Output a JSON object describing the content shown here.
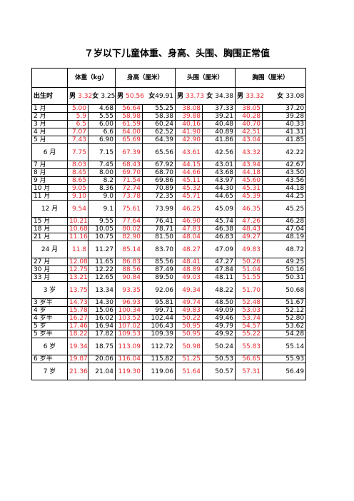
{
  "title": "７岁以下儿童体重、身高、头围、胸围正常值",
  "header": {
    "col_weight": "体重（kg）",
    "col_height": "身高（厘米）",
    "col_head": "头围（厘米）",
    "col_chest": "胸围（厘米）"
  },
  "subheader": {
    "age": "出生时",
    "weight": {
      "male_label": "男",
      "male_value": "3.32",
      "female_label": "女",
      "female_value": "3.25"
    },
    "height": {
      "male_label": "男",
      "male_value": "50.56",
      "female_label": "女",
      "female_value": "49.91"
    },
    "head": {
      "male_label": "男",
      "male_value": "33.73",
      "female_label": "女",
      "female_value": "34.38"
    },
    "chest": {
      "male_label": "男",
      "male_value": "33.32",
      "female_label": "女",
      "female_value": "33.08"
    }
  },
  "colors": {
    "male": "#e8262b",
    "female": "#000000"
  },
  "rows": [
    {
      "age": "1 月",
      "tall": false,
      "v": [
        "5.00",
        "4.68",
        "56.64",
        "55.25",
        "38.08",
        "37.33",
        "38.05",
        "37.20"
      ]
    },
    {
      "age": "2 月",
      "tall": false,
      "v": [
        "5.9",
        "5.55",
        "58.98",
        "58.38",
        "39.88",
        "39.21",
        "40.28",
        "39.28"
      ]
    },
    {
      "age": "3 月",
      "tall": false,
      "v": [
        "6.5",
        "6.00",
        "61.59",
        "60.24",
        "40.16",
        "40.48",
        "40.70",
        "40.33"
      ]
    },
    {
      "age": "4 月",
      "tall": false,
      "v": [
        "7.07",
        "6.6",
        "64.00",
        "62.52",
        "41.90",
        "40.89",
        "42.51",
        "41.31"
      ]
    },
    {
      "age": "5 月",
      "tall": false,
      "v": [
        "7.43",
        "6.90",
        "65.69",
        "64.39",
        "42.90",
        "41.86",
        "43.04",
        "41.85"
      ]
    },
    {
      "age": "6 月",
      "tall": true,
      "v": [
        "7.75",
        "7.15",
        "67.39",
        "65.56",
        "43.61",
        "42.56",
        "43.32",
        "42.22"
      ]
    },
    {
      "age": "7 月",
      "tall": false,
      "v": [
        "8.03",
        "7.45",
        "68.43",
        "67.92",
        "44.15",
        "43.01",
        "43.94",
        "42.67"
      ]
    },
    {
      "age": "8 月",
      "tall": false,
      "v": [
        "8.45",
        "8.00",
        "69.70",
        "68.70",
        "44.66",
        "43.68",
        "44.18",
        "43.50"
      ]
    },
    {
      "age": "9 月",
      "tall": false,
      "v": [
        "8.65",
        "8.2",
        "71.54",
        "69.86",
        "45.11",
        "43.97",
        "45.60",
        "43.56"
      ]
    },
    {
      "age": "10 月",
      "tall": false,
      "v": [
        "9.05",
        "8.36",
        "72.74",
        "70.89",
        "45.32",
        "44.30",
        "45.31",
        "44.18"
      ]
    },
    {
      "age": "11 月",
      "tall": false,
      "v": [
        "9.10",
        "9.0",
        "73.78",
        "72.35",
        "45.71",
        "44.65",
        "45.39",
        "44.25"
      ]
    },
    {
      "age": "12 月",
      "tall": true,
      "v": [
        "9.54",
        "9.1",
        "75.61",
        "73.99",
        "46.25",
        "45.09",
        "46.35",
        "45.25"
      ]
    },
    {
      "age": "15 月",
      "tall": false,
      "v": [
        "10.21",
        "9.55",
        "77.64",
        "76.41",
        "46.90",
        "45.74",
        "47.26",
        "46.28"
      ]
    },
    {
      "age": "18 月",
      "tall": false,
      "v": [
        "10.68",
        "10.05",
        "80.02",
        "78.71",
        "47.83",
        "46.38",
        "48.43",
        "47.04"
      ]
    },
    {
      "age": "21 月",
      "tall": false,
      "v": [
        "11.16",
        "10.75",
        "82.90",
        "81.50",
        "48.04",
        "46.83",
        "49.27",
        "48.19"
      ]
    },
    {
      "age": "24 月",
      "tall": true,
      "v": [
        "11.8",
        "11.27",
        "85.14",
        "83.70",
        "48.27",
        "47.09",
        "49.83",
        "48.72"
      ]
    },
    {
      "age": "27 月",
      "tall": false,
      "v": [
        "12.08",
        "11.65",
        "86.83",
        "85.56",
        "48.41",
        "47.27",
        "50.26",
        "49.25"
      ]
    },
    {
      "age": "30 月",
      "tall": false,
      "v": [
        "12.75",
        "12.22",
        "88.56",
        "87.49",
        "48.89",
        "47.84",
        "51.04",
        "50.16"
      ]
    },
    {
      "age": "33 月",
      "tall": false,
      "v": [
        "13.21",
        "12.65",
        "90.84",
        "89.50",
        "49.03",
        "48.11",
        "51.55",
        "50.31"
      ]
    },
    {
      "age": "3 岁",
      "tall": true,
      "v": [
        "13.75",
        "13.34",
        "93.35",
        "92.06",
        "49.34",
        "48.22",
        "51.70",
        "50.68"
      ]
    },
    {
      "age": "3 岁半",
      "tall": false,
      "v": [
        "14.73",
        "14.30",
        "96.93",
        "95.81",
        "49.74",
        "48.50",
        "52.48",
        "51.67"
      ]
    },
    {
      "age": "4 岁",
      "tall": false,
      "v": [
        "15.78",
        "15.06",
        "100.34",
        "99.71",
        "49.83",
        "49.09",
        "53.03",
        "52.12"
      ]
    },
    {
      "age": "4 岁半",
      "tall": false,
      "v": [
        "16.27",
        "16.02",
        "103.52",
        "102.44",
        "50.22",
        "49.46",
        "53.74",
        "52.80"
      ]
    },
    {
      "age": "5 岁",
      "tall": false,
      "v": [
        "17.46",
        "16.94",
        "107.02",
        "106.43",
        "50.95",
        "49.79",
        "54.57",
        "53.62"
      ]
    },
    {
      "age": "5 岁半",
      "tall": false,
      "v": [
        "18.22",
        "17.82",
        "109.53",
        "109.39",
        "50.95",
        "49.92",
        "55.22",
        "54.28"
      ]
    },
    {
      "age": "6 岁",
      "tall": true,
      "v": [
        "19.34",
        "18.75",
        "113.09",
        "112.72",
        "50.98",
        "50.24",
        "55.83",
        "55.14"
      ]
    },
    {
      "age": "6 岁半",
      "tall": false,
      "v": [
        "19.87",
        "20.06",
        "116.04",
        "115.82",
        "51.25",
        "50.53",
        "56.65",
        "55.93"
      ]
    },
    {
      "age": "7 岁",
      "tall": true,
      "v": [
        "21.36",
        "21.04",
        "119.30",
        "119.06",
        "51.64",
        "50.57",
        "57.31",
        "56.49"
      ]
    }
  ]
}
